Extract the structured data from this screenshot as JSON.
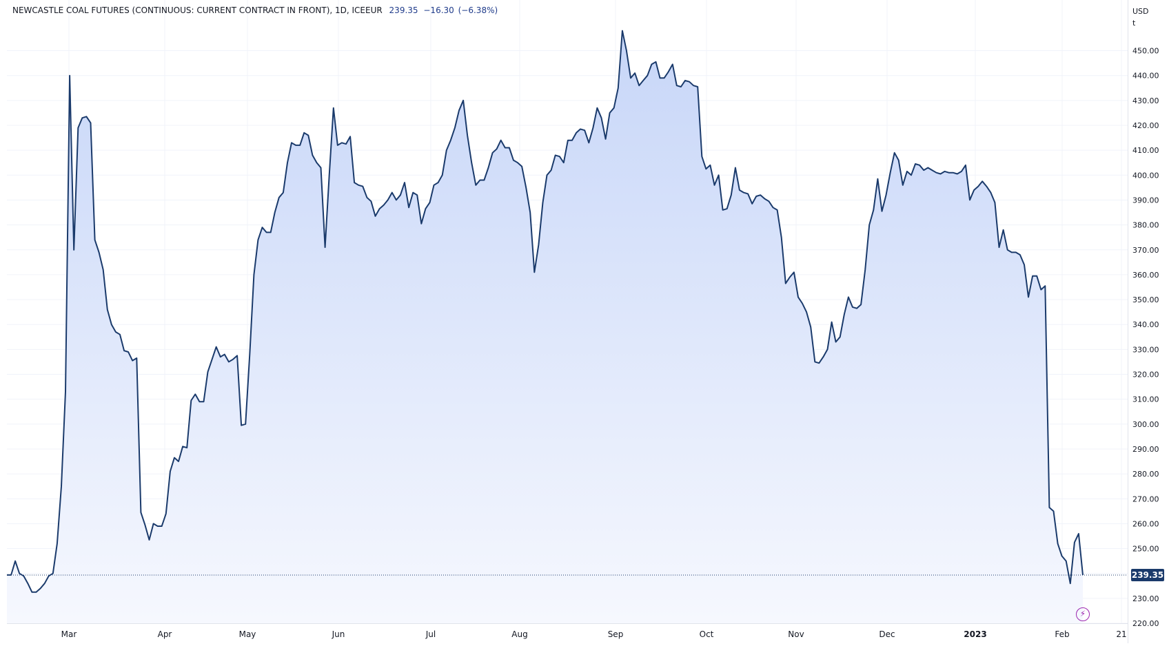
{
  "header": {
    "symbol": "NEWCASTLE COAL FUTURES (CONTINUOUS: CURRENT CONTRACT IN FRONT), 1D, ICEEUR",
    "last": "239.35",
    "change": "−16.30",
    "change_pct": "(−6.38%)"
  },
  "currency": "USD",
  "unit": "t",
  "last_price_label": "239.35",
  "colors": {
    "line": "#1a3a6b",
    "fill_top": "#c7d6f8",
    "fill_bottom": "#f6f8fe",
    "label_bg": "#1a3a6b",
    "lightning": "#9c27b0"
  },
  "icons": {
    "lightning": "lightning-icon"
  },
  "chart_data": {
    "type": "area",
    "ylim": [
      220,
      460
    ],
    "y_ticks": [
      "220.00",
      "230.00",
      "240.00",
      "250.00",
      "260.00",
      "270.00",
      "280.00",
      "290.00",
      "300.00",
      "310.00",
      "320.00",
      "330.00",
      "340.00",
      "350.00",
      "360.00",
      "370.00",
      "380.00",
      "390.00",
      "400.00",
      "410.00",
      "420.00",
      "430.00",
      "440.00",
      "450.00"
    ],
    "x_ticks": [
      "Mar",
      "Apr",
      "May",
      "Jun",
      "Jul",
      "Aug",
      "Sep",
      "Oct",
      "Nov",
      "Dec",
      "2023",
      "Feb",
      "21"
    ],
    "series": [
      {
        "values": [
          239.4,
          239.4,
          245,
          240,
          239,
          236,
          232.5,
          232.5,
          234,
          236,
          239,
          240,
          252,
          275,
          313,
          440,
          370,
          419,
          423,
          423.5,
          421,
          374,
          369,
          362,
          346,
          340,
          337,
          336,
          329.5,
          329,
          325.5,
          326.5,
          264.5,
          259.5,
          253.5,
          260,
          259,
          259,
          264,
          281,
          286.5,
          285,
          291,
          290.5,
          309.5,
          312,
          309,
          309,
          321,
          326,
          331,
          327,
          328,
          325,
          326,
          327.5,
          299.5,
          300,
          328,
          360,
          374,
          379,
          377,
          377,
          385,
          391,
          393,
          405,
          413,
          412,
          412,
          417,
          416,
          408,
          405,
          403,
          371,
          400,
          427,
          412,
          413,
          412.5,
          415.5,
          397,
          396,
          395.5,
          391,
          389.5,
          383.5,
          386.5,
          388,
          390,
          393,
          390,
          392,
          397,
          387,
          393,
          392,
          380.5,
          386.5,
          389,
          396,
          397,
          400,
          410,
          414,
          419,
          426,
          430,
          416,
          405,
          396,
          398,
          398,
          403,
          409,
          410.5,
          414,
          411,
          411,
          406,
          405,
          403.5,
          395,
          385,
          361,
          372,
          389,
          400,
          402,
          408,
          407.5,
          405,
          414,
          414,
          417,
          418.5,
          418,
          413,
          419,
          427,
          423,
          414.5,
          425,
          427,
          435,
          458,
          450,
          439,
          441,
          436,
          438,
          440,
          444.5,
          445.5,
          439,
          439,
          441.5,
          444.5,
          436,
          435.5,
          438,
          437.5,
          436,
          435.5,
          407.5,
          402.5,
          404,
          396,
          400,
          386,
          386.5,
          392,
          403,
          394,
          393,
          392.5,
          388.5,
          391.5,
          392,
          390.5,
          389.5,
          387,
          386,
          375,
          356.5,
          359,
          361,
          351,
          348.5,
          345,
          339,
          325,
          324.5,
          327,
          330,
          341,
          333,
          335,
          344,
          351,
          347,
          346.5,
          348,
          362,
          380,
          386,
          398.5,
          385.5,
          392,
          401,
          409,
          406,
          396,
          401.5,
          400,
          404.5,
          404,
          402,
          403,
          402,
          401,
          400.5,
          401.5,
          401,
          401,
          400.5,
          401.5,
          404,
          390,
          394,
          395.5,
          397.5,
          395.5,
          393,
          389,
          371,
          378,
          370,
          369,
          369,
          368,
          364,
          351,
          359.5,
          359.5,
          354,
          355.5,
          266.5,
          265,
          252,
          247,
          245,
          236,
          252.5,
          256,
          239.35
        ],
        "x_start": "2022-02-14",
        "x_end": "2023-02-08"
      }
    ]
  }
}
